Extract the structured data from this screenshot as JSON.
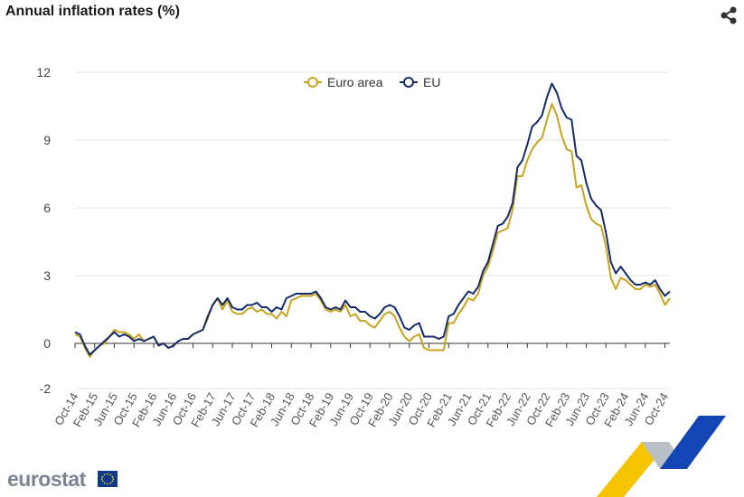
{
  "title": "Annual inflation rates (%)",
  "logo_text": "eurostat",
  "share_icon": "share-icon",
  "colors": {
    "euro_area": "#c9a31c",
    "eu": "#142b6c",
    "grid": "#e6e6e6",
    "axis": "#333333"
  },
  "chart_data": {
    "type": "line",
    "title": "Annual inflation rates (%)",
    "xlabel": "",
    "ylabel": "",
    "ylim": [
      -2,
      12
    ],
    "yticks": [
      -2,
      0,
      3,
      6,
      9,
      12
    ],
    "grid": true,
    "legend_position": "top-center",
    "x_start": "Oct-14",
    "x_end": "Oct-24",
    "xtick_labels": [
      "Oct-14",
      "Feb-15",
      "Jun-15",
      "Oct-15",
      "Feb-16",
      "Jun-16",
      "Oct-16",
      "Feb-17",
      "Jun-17",
      "Oct-17",
      "Feb-18",
      "Jun-18",
      "Oct-18",
      "Feb-19",
      "Jun-19",
      "Oct-19",
      "Feb-20",
      "Jun-20",
      "Oct-20",
      "Feb-21",
      "Jun-21",
      "Oct-21",
      "Feb-22",
      "Jun-22",
      "Oct-22",
      "Feb-23",
      "Jun-23",
      "Oct-23",
      "Feb-24",
      "Jun-24",
      "Oct-24"
    ],
    "series": [
      {
        "name": "Euro area",
        "values": [
          0.4,
          0.3,
          -0.2,
          -0.6,
          -0.3,
          -0.1,
          0.0,
          0.3,
          0.6,
          0.5,
          0.5,
          0.4,
          0.2,
          0.4,
          0.1,
          0.2,
          0.3,
          -0.1,
          0.0,
          -0.2,
          -0.1,
          0.1,
          0.2,
          0.2,
          0.4,
          0.5,
          0.6,
          1.1,
          1.7,
          2.0,
          1.5,
          1.9,
          1.4,
          1.3,
          1.3,
          1.5,
          1.6,
          1.4,
          1.5,
          1.3,
          1.3,
          1.1,
          1.4,
          1.2,
          1.9,
          2.0,
          2.1,
          2.1,
          2.1,
          2.2,
          1.9,
          1.5,
          1.4,
          1.5,
          1.4,
          1.7,
          1.2,
          1.3,
          1.0,
          1.0,
          0.8,
          0.7,
          1.0,
          1.3,
          1.4,
          1.2,
          0.7,
          0.3,
          0.1,
          0.3,
          0.4,
          -0.2,
          -0.3,
          -0.3,
          -0.3,
          -0.3,
          0.9,
          0.9,
          1.3,
          1.6,
          2.0,
          1.9,
          2.2,
          3.0,
          3.4,
          4.1,
          4.9,
          5.0,
          5.1,
          5.9,
          7.4,
          7.4,
          8.1,
          8.6,
          8.9,
          9.1,
          9.9,
          10.6,
          10.1,
          9.2,
          8.6,
          8.5,
          6.9,
          7.0,
          6.1,
          5.5,
          5.3,
          5.2,
          4.3,
          2.9,
          2.4,
          2.9,
          2.8,
          2.6,
          2.4,
          2.4,
          2.6,
          2.5,
          2.6,
          2.2,
          1.7,
          2.0
        ]
      },
      {
        "name": "EU",
        "values": [
          0.5,
          0.4,
          -0.1,
          -0.5,
          -0.3,
          -0.1,
          0.1,
          0.3,
          0.5,
          0.3,
          0.4,
          0.3,
          0.1,
          0.2,
          0.1,
          0.2,
          0.3,
          -0.1,
          0.0,
          -0.2,
          -0.1,
          0.1,
          0.2,
          0.2,
          0.4,
          0.5,
          0.6,
          1.2,
          1.7,
          2.0,
          1.7,
          2.0,
          1.6,
          1.5,
          1.5,
          1.7,
          1.7,
          1.8,
          1.6,
          1.6,
          1.4,
          1.6,
          1.5,
          2.0,
          2.1,
          2.2,
          2.2,
          2.2,
          2.2,
          2.3,
          2.0,
          1.6,
          1.5,
          1.6,
          1.5,
          1.9,
          1.6,
          1.6,
          1.4,
          1.4,
          1.2,
          1.1,
          1.3,
          1.6,
          1.7,
          1.6,
          1.2,
          0.7,
          0.6,
          0.8,
          0.9,
          0.3,
          0.3,
          0.3,
          0.2,
          0.3,
          1.2,
          1.3,
          1.7,
          2.0,
          2.3,
          2.2,
          2.5,
          3.2,
          3.6,
          4.4,
          5.2,
          5.3,
          5.6,
          6.2,
          7.8,
          8.1,
          8.8,
          9.6,
          9.8,
          10.1,
          10.9,
          11.5,
          11.1,
          10.4,
          10.0,
          9.9,
          8.3,
          8.1,
          7.1,
          6.4,
          6.1,
          5.9,
          4.9,
          3.6,
          3.1,
          3.4,
          3.1,
          2.8,
          2.6,
          2.6,
          2.7,
          2.6,
          2.8,
          2.4,
          2.1,
          2.3
        ]
      }
    ]
  }
}
